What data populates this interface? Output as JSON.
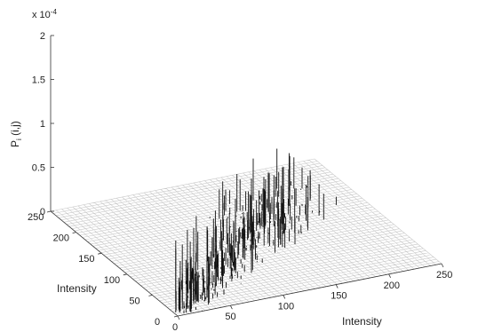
{
  "chart_data": {
    "type": "surface",
    "xlabel": "Intensity",
    "ylabel": "Intensity",
    "zlabel": "P_i (i,j)",
    "zlabel_main": "P",
    "zlabel_sub": "i",
    "zlabel_rest": " (i,j)",
    "z_multiplier": "x 10",
    "z_multiplier_exp": "-4",
    "xlim": [
      0,
      250
    ],
    "ylim": [
      0,
      250
    ],
    "zlim": [
      0,
      2
    ],
    "x_ticks": [
      "0",
      "50",
      "100",
      "150",
      "200",
      "250"
    ],
    "y_ticks": [
      "0",
      "50",
      "100",
      "150",
      "200",
      "250"
    ],
    "z_ticks": [
      "0",
      "0.5",
      "1",
      "1.5",
      "2"
    ],
    "grid": false,
    "note": "sparse spikes concentrated along the diagonal band (i ≈ j), peak near 0.9e-4 at low intensity"
  },
  "x_tick_values": [
    0,
    50,
    100,
    150,
    200,
    250
  ],
  "y_tick_values": [
    0,
    50,
    100,
    150,
    200,
    250
  ],
  "z_tick_values": [
    0,
    0.5,
    1,
    1.5,
    2
  ]
}
